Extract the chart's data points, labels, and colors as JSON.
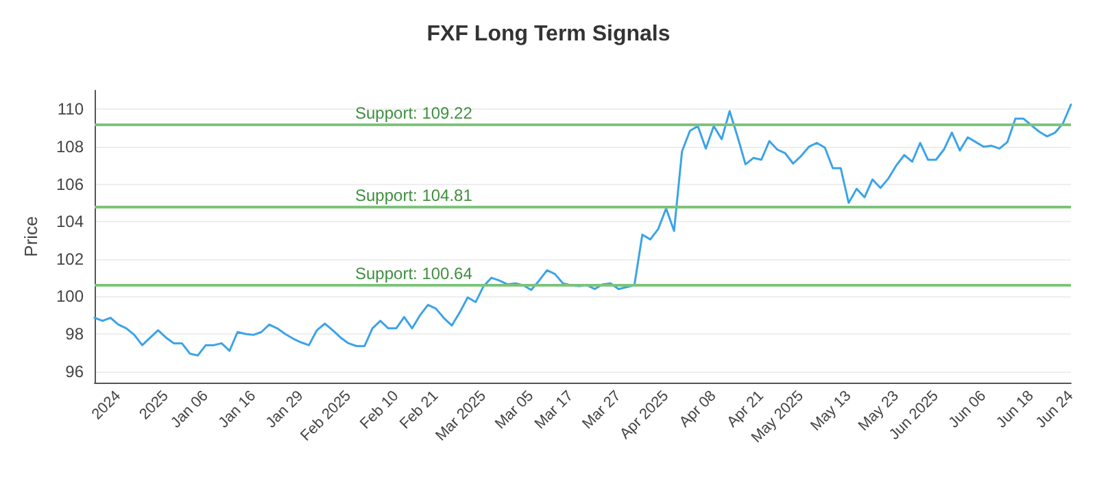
{
  "chart_data": {
    "type": "line",
    "title": "FXF Long Term Signals",
    "ylabel": "Price",
    "categories": [
      null,
      null,
      null,
      "2024",
      null,
      null,
      null,
      null,
      null,
      "2025",
      null,
      null,
      null,
      null,
      "Jan 06",
      null,
      null,
      null,
      null,
      null,
      "Jan 16",
      null,
      null,
      null,
      null,
      null,
      "Jan 29",
      null,
      null,
      null,
      null,
      null,
      "Feb 2025",
      null,
      null,
      null,
      null,
      null,
      "Feb 10",
      null,
      null,
      null,
      null,
      "Feb 21",
      null,
      null,
      null,
      null,
      null,
      "Mar 2025",
      null,
      null,
      null,
      null,
      null,
      "Mar 05",
      null,
      null,
      null,
      null,
      "Mar 17",
      null,
      null,
      null,
      null,
      null,
      "Mar 27",
      null,
      null,
      null,
      null,
      null,
      "Apr 2025",
      null,
      null,
      null,
      null,
      null,
      "Apr 08",
      null,
      null,
      null,
      null,
      null,
      "Apr 21",
      null,
      null,
      null,
      null,
      "May 2025",
      null,
      null,
      null,
      null,
      null,
      "May 13",
      null,
      null,
      null,
      null,
      null,
      "May 23",
      null,
      null,
      null,
      null,
      "Jun 2025",
      null,
      null,
      null,
      null,
      null,
      "Jun 06",
      null,
      null,
      null,
      null,
      null,
      "Jun 18",
      null,
      null,
      null,
      null,
      "Jun 24"
    ],
    "series": [
      {
        "color": "#3ba3e8",
        "values": [
          98.86,
          98.7,
          98.86,
          98.5,
          98.3,
          97.95,
          97.4,
          97.8,
          98.2,
          97.8,
          97.5,
          97.5,
          96.95,
          96.85,
          97.4,
          97.4,
          97.5,
          97.1,
          98.1,
          98.0,
          97.95,
          98.1,
          98.5,
          98.3,
          98.0,
          97.75,
          97.55,
          97.4,
          98.2,
          98.55,
          98.2,
          97.8,
          97.5,
          97.35,
          97.35,
          98.3,
          98.7,
          98.3,
          98.3,
          98.9,
          98.3,
          99.0,
          99.55,
          99.35,
          98.85,
          98.45,
          99.15,
          99.95,
          99.7,
          100.55,
          101.0,
          100.85,
          100.65,
          100.7,
          100.6,
          100.35,
          100.85,
          101.4,
          101.2,
          100.7,
          100.6,
          100.55,
          100.6,
          100.4,
          100.65,
          100.7,
          100.4,
          100.5,
          100.6,
          103.3,
          103.05,
          103.6,
          104.7,
          103.5,
          107.75,
          108.85,
          109.1,
          107.9,
          109.1,
          108.4,
          109.9,
          108.53,
          107.06,
          107.4,
          107.3,
          108.3,
          107.85,
          107.65,
          107.1,
          107.5,
          108.0,
          108.2,
          107.95,
          106.85,
          106.85,
          105.0,
          105.75,
          105.3,
          106.25,
          105.8,
          106.3,
          107.0,
          107.55,
          107.2,
          108.2,
          107.3,
          107.3,
          107.85,
          108.75,
          107.8,
          108.5,
          108.25,
          108.0,
          108.05,
          107.9,
          108.25,
          109.5,
          109.5,
          109.15,
          108.8,
          108.55,
          108.75,
          109.25,
          110.25
        ]
      }
    ],
    "ylim": [
      95.4,
      111
    ],
    "yticks": [
      96,
      98,
      100,
      102,
      104,
      106,
      108,
      110
    ],
    "grid": "y",
    "marker": "none",
    "line_style": "solid",
    "ref_lines": [
      {
        "axis": "y",
        "value": 109.22,
        "label": "Support: 109.22",
        "color": "#7cc47a"
      },
      {
        "axis": "y",
        "value": 104.81,
        "label": "Support: 104.81",
        "color": "#7cc47a"
      },
      {
        "axis": "y",
        "value": 100.64,
        "label": "Support: 100.64",
        "color": "#7cc47a"
      }
    ]
  }
}
